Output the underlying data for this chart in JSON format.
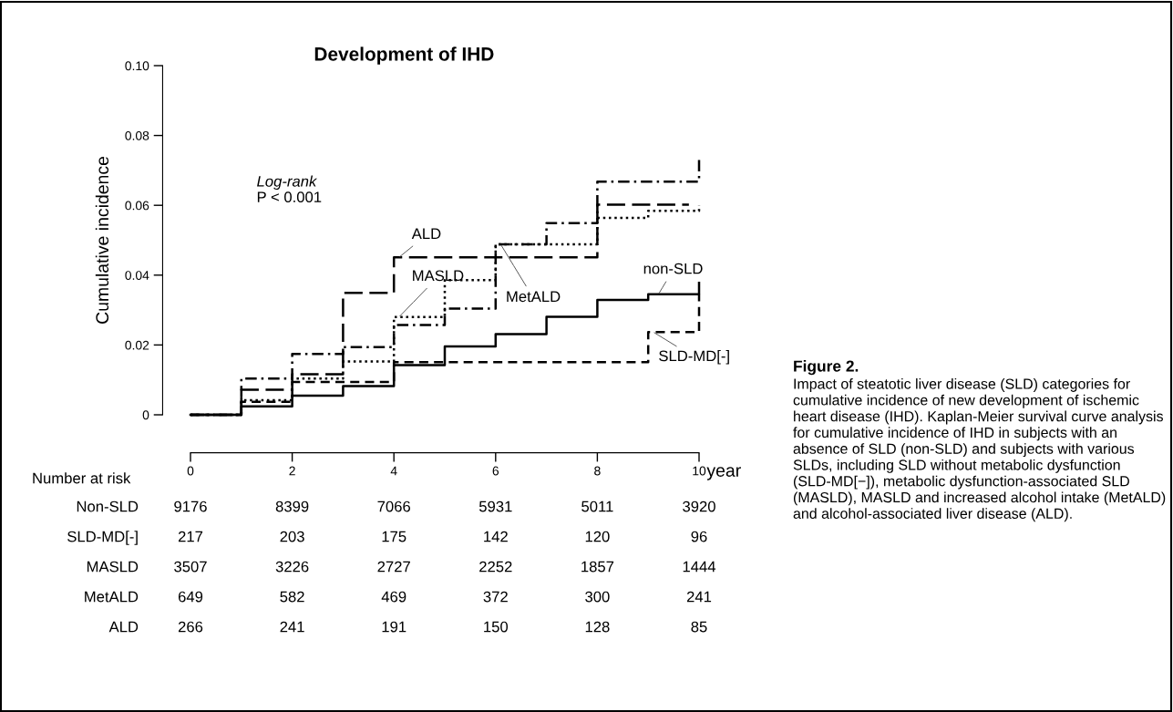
{
  "chart_data": {
    "type": "step",
    "title": "Development of IHD",
    "xlabel": "year",
    "ylabel": "Cumulative incidence",
    "xlim": [
      0,
      10
    ],
    "ylim": [
      0,
      0.1
    ],
    "xticks": [
      0,
      2,
      4,
      6,
      8,
      10
    ],
    "yticks": [
      0,
      0.02,
      0.04,
      0.06,
      0.08,
      {
        "value": 0.1,
        "label": "0.10"
      }
    ],
    "grid": false,
    "legend": false,
    "series": [
      {
        "name": "non-SLD",
        "color": "#000000",
        "line_style": "solid",
        "x": [
          0,
          1,
          2,
          3,
          4,
          5,
          6,
          7,
          8,
          9,
          10
        ],
        "values": [
          0,
          0.0024,
          0.0055,
          0.0082,
          0.0142,
          0.0196,
          0.0231,
          0.0281,
          0.0329,
          0.0345,
          0.0378
        ]
      },
      {
        "name": "SLD-MD[-]",
        "color": "#000000",
        "line_style": "dashed",
        "x": [
          0,
          1,
          2,
          4,
          9,
          10
        ],
        "values": [
          0,
          0.0037,
          0.0094,
          0.0151,
          0.0237,
          0.0345
        ]
      },
      {
        "name": "MASLD",
        "color": "#000000",
        "line_style": "dotted",
        "x": [
          0,
          1,
          2,
          3,
          4,
          5,
          6,
          8,
          9,
          10
        ],
        "values": [
          0,
          0.0042,
          0.0104,
          0.0153,
          0.028,
          0.0386,
          0.0488,
          0.0564,
          0.0584,
          0.06
        ]
      },
      {
        "name": "MetALD",
        "color": "#000000",
        "line_style": "dashdot",
        "x": [
          0,
          1,
          2,
          3,
          4,
          5,
          6,
          7,
          8,
          10
        ],
        "values": [
          0,
          0.0104,
          0.0174,
          0.0194,
          0.0257,
          0.0304,
          0.0488,
          0.0549,
          0.0668,
          0.074
        ]
      },
      {
        "name": "ALD",
        "color": "#000000",
        "line_style": "longdashed",
        "x": [
          0,
          1,
          2,
          3,
          4,
          8,
          9.8
        ],
        "values": [
          0,
          0.0072,
          0.0116,
          0.0349,
          0.0451,
          0.0602,
          0.0602
        ]
      }
    ],
    "annotations": [
      "Log-rank",
      "P < 0.001",
      "Number at risk",
      "Non-SLD",
      "9176",
      "8399",
      "7066",
      "5931",
      "5011",
      "3920",
      "SLD-MD[-]",
      "217",
      "203",
      "175",
      "142",
      "120",
      "96",
      "MASLD",
      "3507",
      "3226",
      "2727",
      "2252",
      "1857",
      "1444",
      "MetALD",
      "649",
      "582",
      "469",
      "372",
      "300",
      "241",
      "ALD",
      "266",
      "241",
      "191",
      "150",
      "128",
      "85",
      "Figure 2.",
      "Impact of steatotic liver disease (SLD) categories for cumulative incidence of new development of ischemic heart disease (IHD). Kaplan-Meier survival curve analysis for cumulative incidence of IHD in subjects with an absence of SLD (non-SLD) and subjects with various SLDs, including SLD without metabolic dysfunction (SLD-MD[−]), metabolic dysfunction-associated SLD (MASLD), MASLD and increased alcohol intake (MetALD) and alcohol-associated liver disease (ALD)."
    ]
  }
}
